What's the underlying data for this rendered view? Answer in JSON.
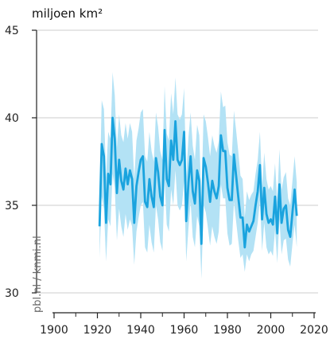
{
  "chart_data": {
    "type": "line",
    "ylabel": "miljoen km²",
    "watermark": "pbl.nl / knmi.nl",
    "xlim": [
      1900,
      2020
    ],
    "ylim": [
      30,
      45
    ],
    "xticks": [
      1900,
      1920,
      1940,
      1960,
      1980,
      2000,
      2020
    ],
    "yticks": [
      30,
      35,
      40,
      45
    ],
    "grid": true,
    "colors": {
      "line": "#1aa3de",
      "band": "#b3e2f5",
      "grid": "#cccccc",
      "axis": "#222222"
    },
    "series": [
      {
        "x": [
          1921,
          1922,
          1923,
          1924,
          1925,
          1926,
          1927,
          1928,
          1929,
          1930,
          1931,
          1932,
          1933,
          1934,
          1935,
          1936,
          1937,
          1938,
          1939,
          1940,
          1941,
          1942,
          1943,
          1944,
          1945,
          1946,
          1947,
          1948,
          1949,
          1950,
          1951,
          1952,
          1953,
          1954,
          1955,
          1956,
          1957,
          1958,
          1959,
          1960,
          1961,
          1962,
          1963,
          1964,
          1965,
          1966,
          1967,
          1968,
          1969,
          1970,
          1971,
          1972,
          1973,
          1974,
          1975,
          1976,
          1977,
          1978,
          1979,
          1980,
          1981,
          1982,
          1983,
          1984,
          1985,
          1986,
          1987,
          1988,
          1989,
          1990,
          1991,
          1992,
          1993,
          1994,
          1995,
          1996,
          1997,
          1998,
          1999,
          2000,
          2001,
          2002,
          2003,
          2004,
          2005,
          2006,
          2007,
          2008,
          2009,
          2010,
          2011,
          2012
        ],
        "y": [
          33.8,
          38.5,
          37.8,
          34.0,
          36.8,
          36.2,
          40.0,
          38.8,
          35.7,
          37.6,
          36.4,
          35.9,
          37.1,
          36.2,
          37.0,
          36.5,
          34.0,
          36.1,
          36.9,
          37.6,
          37.8,
          35.2,
          34.9,
          36.5,
          35.5,
          34.9,
          37.7,
          36.9,
          35.5,
          35.0,
          39.3,
          36.5,
          36.1,
          38.7,
          37.6,
          39.8,
          37.6,
          37.3,
          37.6,
          39.2,
          34.1,
          36.3,
          37.8,
          35.8,
          35.1,
          37.0,
          36.4,
          32.8,
          37.7,
          37.2,
          36.3,
          35.2,
          36.4,
          35.8,
          35.4,
          36.1,
          39.0,
          38.1,
          38.1,
          36.0,
          35.3,
          35.3,
          37.9,
          36.7,
          35.5,
          34.3,
          34.3,
          32.6,
          33.9,
          33.5,
          33.8,
          34.1,
          35.0,
          35.8,
          37.3,
          34.2,
          36.0,
          34.5,
          34.0,
          34.2,
          33.9,
          35.5,
          33.4,
          36.2,
          34.0,
          34.8,
          35.0,
          33.6,
          33.2,
          34.6,
          35.9,
          34.4
        ],
        "lower": [
          32.0,
          35.5,
          34.8,
          31.8,
          34.2,
          33.8,
          36.8,
          36.0,
          33.0,
          34.8,
          33.8,
          33.2,
          34.5,
          33.6,
          34.2,
          33.8,
          31.6,
          33.5,
          34.3,
          35.0,
          35.2,
          32.6,
          32.3,
          33.9,
          32.9,
          32.3,
          35.0,
          34.2,
          32.9,
          32.4,
          36.5,
          33.9,
          33.5,
          35.9,
          35.0,
          37.0,
          35.0,
          34.7,
          35.0,
          36.4,
          31.8,
          33.7,
          35.2,
          33.2,
          32.6,
          34.4,
          33.8,
          30.8,
          35.0,
          34.6,
          33.7,
          32.7,
          33.8,
          33.2,
          32.8,
          33.5,
          36.2,
          35.4,
          35.4,
          33.4,
          32.7,
          32.8,
          35.2,
          34.1,
          33.0,
          32.0,
          32.2,
          31.2,
          32.2,
          31.8,
          32.2,
          32.4,
          33.2,
          34.0,
          35.3,
          32.4,
          34.0,
          32.6,
          32.2,
          32.4,
          32.1,
          33.6,
          31.7,
          34.2,
          32.2,
          33.0,
          33.1,
          31.9,
          31.5,
          32.8,
          33.9,
          32.6
        ],
        "upper": [
          35.4,
          41.0,
          40.5,
          36.6,
          39.2,
          38.8,
          42.6,
          41.3,
          38.3,
          40.2,
          39.0,
          38.6,
          39.7,
          38.8,
          39.7,
          39.2,
          36.5,
          38.7,
          39.4,
          40.3,
          40.5,
          37.8,
          37.5,
          39.2,
          38.1,
          37.5,
          40.3,
          39.5,
          38.1,
          37.6,
          41.8,
          39.1,
          38.7,
          41.4,
          40.2,
          42.3,
          40.2,
          39.9,
          40.2,
          41.7,
          36.6,
          38.9,
          40.3,
          38.4,
          37.6,
          39.6,
          39.0,
          35.2,
          40.2,
          39.8,
          38.9,
          37.8,
          39.0,
          38.4,
          38.0,
          38.7,
          41.5,
          40.6,
          40.7,
          38.6,
          37.9,
          37.8,
          40.4,
          39.3,
          38.1,
          36.7,
          36.5,
          34.3,
          35.8,
          35.3,
          35.6,
          35.8,
          36.8,
          37.6,
          39.2,
          36.1,
          38.0,
          36.5,
          35.9,
          36.1,
          35.8,
          37.4,
          35.2,
          38.2,
          35.9,
          36.6,
          36.9,
          35.4,
          35.0,
          36.4,
          37.8,
          36.3
        ]
      }
    ]
  }
}
